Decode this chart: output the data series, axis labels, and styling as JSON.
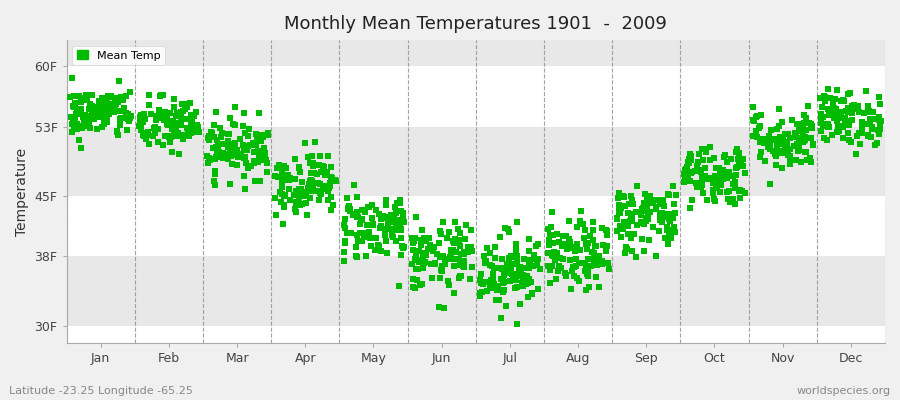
{
  "title": "Monthly Mean Temperatures 1901  -  2009",
  "ylabel": "Temperature",
  "subtitle_left": "Latitude -23.25 Longitude -65.25",
  "subtitle_right": "worldspecies.org",
  "legend_label": "Mean Temp",
  "dot_color": "#00bb00",
  "background_color": "#f0f0f0",
  "plot_bg_color": "#e0e0e0",
  "band_colors": [
    "#ffffff",
    "#e8e8e8"
  ],
  "ytick_labels": [
    "30F",
    "38F",
    "45F",
    "53F",
    "60F"
  ],
  "ytick_values": [
    30,
    38,
    45,
    53,
    60
  ],
  "ylim": [
    28,
    63
  ],
  "months": [
    "Jan",
    "Feb",
    "Mar",
    "Apr",
    "May",
    "Jun",
    "Jul",
    "Aug",
    "Sep",
    "Oct",
    "Nov",
    "Dec"
  ],
  "seed": 42,
  "n_years": 109,
  "mean_temps_F": [
    54.5,
    53.2,
    50.5,
    46.5,
    41.5,
    37.8,
    36.5,
    38.0,
    42.5,
    47.5,
    51.5,
    54.0
  ],
  "std_temps_F": [
    1.5,
    1.6,
    1.7,
    1.8,
    2.0,
    2.0,
    2.2,
    2.0,
    2.0,
    1.8,
    1.8,
    1.6
  ],
  "marker_size": 14,
  "marker": "s",
  "dpi": 100,
  "figsize": [
    9.0,
    4.0
  ]
}
